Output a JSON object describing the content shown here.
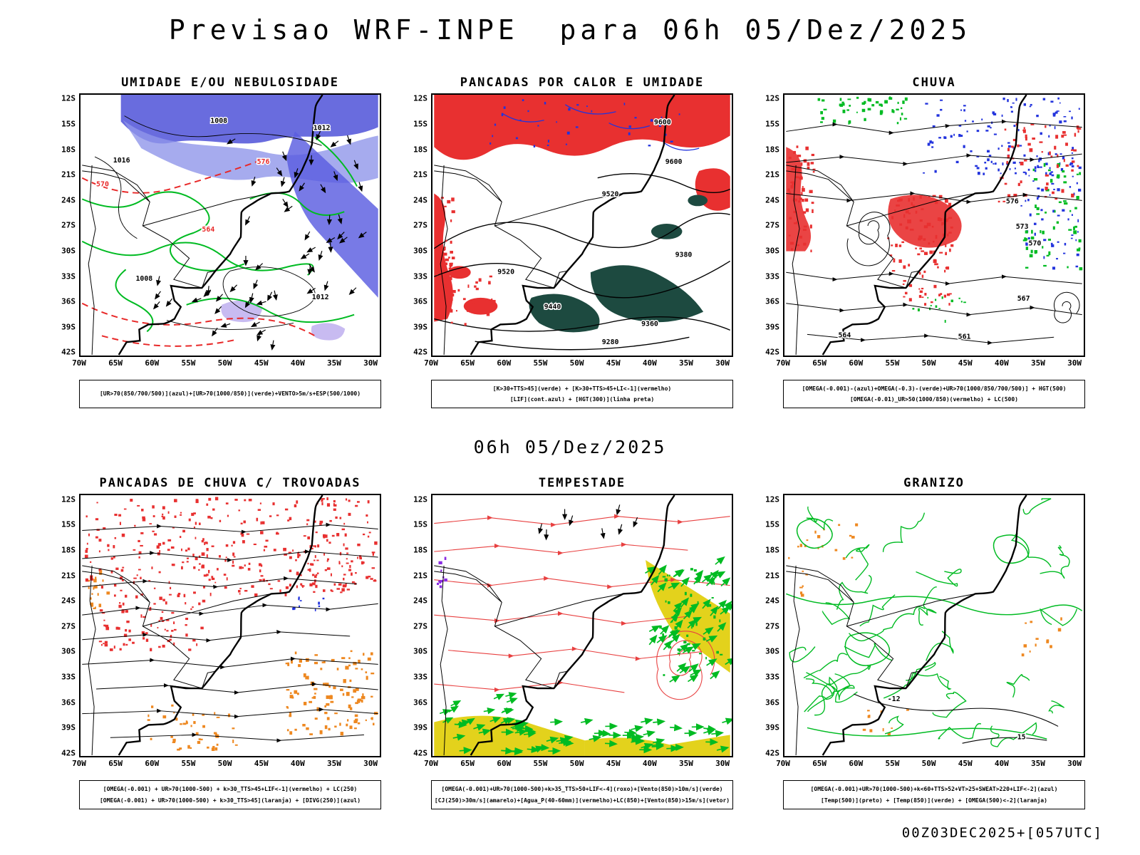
{
  "header": {
    "title": "Previsao WRF-INPE  para 06h 05/Dez/2025"
  },
  "valid_time_caption": "06h 05/Dez/2025",
  "run_info": "00Z03DEC2025+[057UTC]",
  "palette": {
    "azul": "#2233dd",
    "verde": "#00bb22",
    "vermelho": "#e83030",
    "laranja": "#ee8820",
    "roxo": "#8a2be2",
    "amarelo": "#e3d21c",
    "preto": "#000000",
    "umidade_azul": "#5a5de0",
    "teal_escuro": "#1d4a40"
  },
  "axes": {
    "lat_ticks": [
      "12S",
      "15S",
      "18S",
      "21S",
      "24S",
      "27S",
      "30S",
      "33S",
      "36S",
      "39S",
      "42S"
    ],
    "lon_ticks": [
      "70W",
      "65W",
      "60W",
      "55W",
      "50W",
      "45W",
      "40W",
      "35W",
      "30W"
    ]
  },
  "panels": [
    {
      "title": "UMIDADE E/OU NEBULOSIDADE",
      "legend": [
        "[UR>70(850/700/500)](azul)+[UR>70(1000/850)](verde)+VENTO>5m/s+ESP(500/1000)"
      ],
      "contour_labels": [
        "1008",
        "1016",
        "1012",
        "576",
        "570",
        "564",
        "1008",
        "1012"
      ]
    },
    {
      "title": "PANCADAS POR CALOR E UMIDADE",
      "legend": [
        "[K>30+TTS>45](verde) + [K>30+TTS>45+LI<-1](vermelho)",
        "[LIF](cont.azul) + [HGT(300)](linha preta)"
      ],
      "contour_labels": [
        "9600",
        "9600",
        "9520",
        "9520",
        "9380",
        "9440",
        "9360",
        "9280"
      ]
    },
    {
      "title": "CHUVA",
      "legend": [
        "[OMEGA(-0.001)-(azul)+OMEGA(-0.3)-(verde)+UR>70(1000/850/700/500)] + HGT(500)",
        "[OMEGA(-0.01)_UR>50(1000/850)(vermelho) + LC(500)"
      ],
      "contour_labels": [
        "576",
        "573",
        "570",
        "567",
        "564",
        "561"
      ]
    },
    {
      "title": "PANCADAS DE CHUVA C/ TROVOADAS",
      "legend": [
        "[OMEGA(-0.001) + UR>70(1000-500) + k>30_TTS>45+LIF<-1](vermelho) + LC(250)",
        "[OMEGA(-0.001) + UR>70(1000-500) + k>30_TTS>45](laranja) + [DIVG(250)](azul)"
      ],
      "contour_labels": []
    },
    {
      "title": "TEMPESTADE",
      "legend": [
        "[OMEGA(-0.001)+UR>70(1000-500)+k>35_TTS>50+LIF<-4](roxo)+[Vento(850)>10m/s](verde)",
        "[CJ(250)>30m/s](amarelo)+[Agua_P(40-60mm)](vermelho)+LC(850)+[Vento(850)>15m/s](vetor)"
      ],
      "contour_labels": []
    },
    {
      "title": "GRANIZO",
      "legend": [
        "[OMEGA(-0.001)+UR>70(1000-500)+k<60+TTS>52+VT>25+SWEAT>220+LIF<-2](azul)",
        "[Temp(500)](preto) + [Temp(850)](verde) + [OMEGA(500)<-2](laranja)"
      ],
      "contour_labels": [
        "-12",
        "15"
      ]
    }
  ]
}
